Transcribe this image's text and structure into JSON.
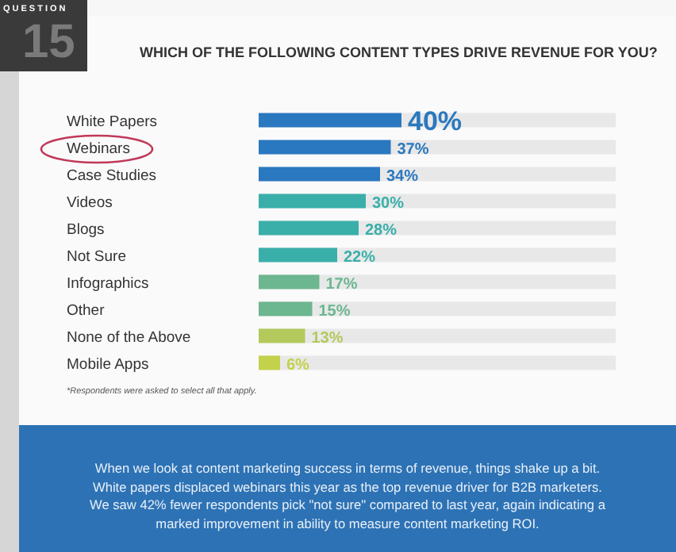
{
  "chart_data": {
    "type": "bar",
    "orientation": "horizontal",
    "title": "WHICH OF THE FOLLOWING CONTENT TYPES DRIVE REVENUE FOR YOU?",
    "categories": [
      "White Papers",
      "Webinars",
      "Case Studies",
      "Videos",
      "Blogs",
      "Not Sure",
      "Infographics",
      "Other",
      "None of the Above",
      "Mobile Apps"
    ],
    "values": [
      40,
      37,
      34,
      30,
      28,
      22,
      17,
      15,
      13,
      6
    ],
    "value_labels": [
      "40%",
      "37%",
      "34%",
      "30%",
      "28%",
      "22%",
      "17%",
      "15%",
      "13%",
      "6%"
    ],
    "colors": [
      "#2a78bf",
      "#2a78bf",
      "#2a78bf",
      "#3aafa9",
      "#3aafa9",
      "#3aafa9",
      "#6cb690",
      "#6cb690",
      "#b3c95c",
      "#c3d24a"
    ],
    "xlim": [
      0,
      100
    ],
    "tick_labels": "y",
    "annotations": [
      "QUESTION",
      "15",
      "*Respondents were asked to select all that apply.",
      "When we look at content marketing success in terms of revenue, things shake up a bit. White papers displaced webinars this year as the top revenue driver for B2B marketers. We saw 42% fewer respondents pick \"not sure\" compared to last year, again indicating a marked improvement in ability to measure content marketing ROI."
    ]
  }
}
